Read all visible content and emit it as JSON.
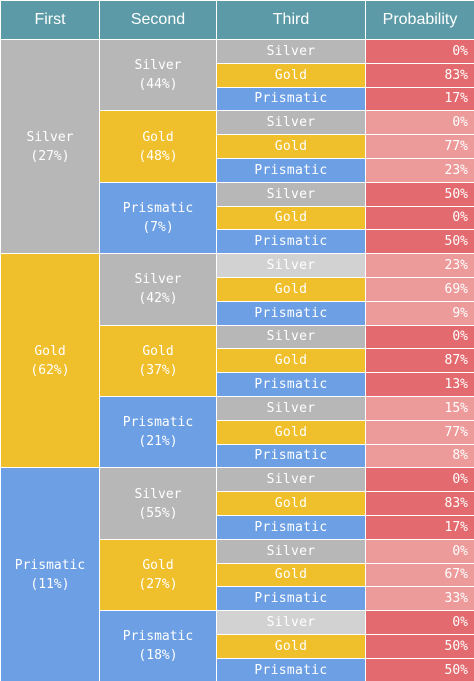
{
  "headers": [
    "First",
    "Second",
    "Third",
    "Probability"
  ],
  "groups": [
    {
      "first": "Silver\n(27%)",
      "first_color": "silver",
      "seconds": [
        {
          "label": "Silver\n(44%)",
          "color": "silver",
          "thirds": [
            {
              "label": "Silver",
              "color": "silver",
              "prob": "0%",
              "shade": "dark"
            },
            {
              "label": "Gold",
              "color": "gold",
              "prob": "83%",
              "shade": "dark"
            },
            {
              "label": "Prismatic",
              "color": "prismatic",
              "prob": "17%",
              "shade": "dark"
            }
          ]
        },
        {
          "label": "Gold\n(48%)",
          "color": "gold",
          "thirds": [
            {
              "label": "Silver",
              "color": "silver",
              "prob": "0%",
              "shade": "light"
            },
            {
              "label": "Gold",
              "color": "gold",
              "prob": "77%",
              "shade": "light"
            },
            {
              "label": "Prismatic",
              "color": "prismatic",
              "prob": "23%",
              "shade": "light"
            }
          ]
        },
        {
          "label": "Prismatic\n(7%)",
          "color": "prismatic",
          "thirds": [
            {
              "label": "Silver",
              "color": "silver",
              "prob": "50%",
              "shade": "dark"
            },
            {
              "label": "Gold",
              "color": "gold",
              "prob": "0%",
              "shade": "dark"
            },
            {
              "label": "Prismatic",
              "color": "prismatic",
              "prob": "50%",
              "shade": "dark"
            }
          ]
        }
      ]
    },
    {
      "first": "Gold\n(62%)",
      "first_color": "gold",
      "seconds": [
        {
          "label": "Silver\n(42%)",
          "color": "silver",
          "thirds": [
            {
              "label": "Silver",
              "color": "silver-light",
              "prob": "23%",
              "shade": "light"
            },
            {
              "label": "Gold",
              "color": "gold",
              "prob": "69%",
              "shade": "light"
            },
            {
              "label": "Prismatic",
              "color": "prismatic",
              "prob": "9%",
              "shade": "light"
            }
          ]
        },
        {
          "label": "Gold\n(37%)",
          "color": "gold",
          "thirds": [
            {
              "label": "Silver",
              "color": "silver",
              "prob": "0%",
              "shade": "dark"
            },
            {
              "label": "Gold",
              "color": "gold",
              "prob": "87%",
              "shade": "dark"
            },
            {
              "label": "Prismatic",
              "color": "prismatic",
              "prob": "13%",
              "shade": "dark"
            }
          ]
        },
        {
          "label": "Prismatic\n(21%)",
          "color": "prismatic",
          "thirds": [
            {
              "label": "Silver",
              "color": "silver",
              "prob": "15%",
              "shade": "light"
            },
            {
              "label": "Gold",
              "color": "gold",
              "prob": "77%",
              "shade": "light"
            },
            {
              "label": "Prismatic",
              "color": "prismatic",
              "prob": "8%",
              "shade": "light"
            }
          ]
        }
      ]
    },
    {
      "first": "Prismatic\n(11%)",
      "first_color": "prismatic",
      "seconds": [
        {
          "label": "Silver\n(55%)",
          "color": "silver",
          "thirds": [
            {
              "label": "Silver",
              "color": "silver",
              "prob": "0%",
              "shade": "dark"
            },
            {
              "label": "Gold",
              "color": "gold",
              "prob": "83%",
              "shade": "dark"
            },
            {
              "label": "Prismatic",
              "color": "prismatic",
              "prob": "17%",
              "shade": "dark"
            }
          ]
        },
        {
          "label": "Gold\n(27%)",
          "color": "gold",
          "thirds": [
            {
              "label": "Silver",
              "color": "silver",
              "prob": "0%",
              "shade": "light"
            },
            {
              "label": "Gold",
              "color": "gold",
              "prob": "67%",
              "shade": "light"
            },
            {
              "label": "Prismatic",
              "color": "prismatic",
              "prob": "33%",
              "shade": "light"
            }
          ]
        },
        {
          "label": "Prismatic\n(18%)",
          "color": "prismatic",
          "thirds": [
            {
              "label": "Silver",
              "color": "silver-light",
              "prob": "0%",
              "shade": "dark"
            },
            {
              "label": "Gold",
              "color": "gold",
              "prob": "50%",
              "shade": "dark"
            },
            {
              "label": "Prismatic",
              "color": "prismatic",
              "prob": "50%",
              "shade": "dark"
            }
          ]
        }
      ]
    }
  ],
  "colors": {
    "header": "#5b9aa6",
    "silver": "#b7b7b7",
    "silver_light": "#d2d2d2",
    "gold": "#f0bf2c",
    "prismatic": "#6c9fe3",
    "prob_dark": "#e36a6e",
    "prob_light": "#ed9a9a"
  }
}
